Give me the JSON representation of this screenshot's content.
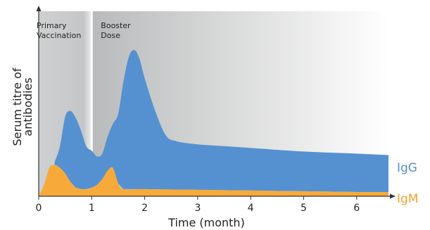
{
  "chart_data": {
    "type": "area",
    "xlabel": "Time (month)",
    "ylabel_lines": [
      "Serum titre of",
      "antibodies"
    ],
    "x_ticks": [
      0,
      1,
      2,
      3,
      4,
      5,
      6
    ],
    "x_tick_labels": [
      "0",
      "1",
      "2",
      "3",
      "4",
      "5",
      "6"
    ],
    "xlim": [
      0,
      6.6
    ],
    "ylim": [
      0,
      1
    ],
    "y_tick_labels": [],
    "phases": [
      {
        "label_lines": [
          "Primary",
          "Vaccination"
        ],
        "x_start": 0,
        "x_end": 1
      },
      {
        "label_lines": [
          "Booster",
          "Dose"
        ],
        "x_start": 1,
        "x_end": 6.6
      }
    ],
    "series": [
      {
        "name": "IgG",
        "color": "#5591D1",
        "label_color": "#5591D1",
        "stacked": true,
        "points": [
          [
            0.3,
            0.02
          ],
          [
            0.4,
            0.15
          ],
          [
            0.5,
            0.4
          ],
          [
            0.6,
            0.5
          ],
          [
            0.7,
            0.49
          ],
          [
            0.8,
            0.41
          ],
          [
            0.9,
            0.3
          ],
          [
            1.0,
            0.26
          ],
          [
            1.1,
            0.2
          ],
          [
            1.2,
            0.18
          ],
          [
            1.3,
            0.24
          ],
          [
            1.4,
            0.31
          ],
          [
            1.5,
            0.49
          ],
          [
            1.6,
            0.76
          ],
          [
            1.7,
            0.93
          ],
          [
            1.8,
            0.98
          ],
          [
            1.9,
            0.92
          ],
          [
            2.0,
            0.78
          ],
          [
            2.2,
            0.55
          ],
          [
            2.4,
            0.38
          ],
          [
            2.6,
            0.34
          ],
          [
            3.0,
            0.32
          ],
          [
            3.5,
            0.31
          ],
          [
            4.0,
            0.3
          ],
          [
            5.0,
            0.28
          ],
          [
            6.0,
            0.27
          ],
          [
            6.6,
            0.26
          ]
        ]
      },
      {
        "name": "IgM",
        "color": "#F7AA3A",
        "label_color": "#F4A12C",
        "stacked": false,
        "points": [
          [
            0.0,
            0.0
          ],
          [
            0.1,
            0.08
          ],
          [
            0.2,
            0.2
          ],
          [
            0.3,
            0.22
          ],
          [
            0.4,
            0.2
          ],
          [
            0.5,
            0.16
          ],
          [
            0.6,
            0.1
          ],
          [
            0.7,
            0.06
          ],
          [
            0.8,
            0.05
          ],
          [
            0.9,
            0.05
          ],
          [
            1.0,
            0.06
          ],
          [
            1.1,
            0.08
          ],
          [
            1.2,
            0.12
          ],
          [
            1.3,
            0.18
          ],
          [
            1.4,
            0.2
          ],
          [
            1.5,
            0.09
          ],
          [
            1.6,
            0.05
          ],
          [
            2.0,
            0.05
          ],
          [
            3.0,
            0.045
          ],
          [
            4.0,
            0.04
          ],
          [
            5.0,
            0.035
          ],
          [
            6.0,
            0.03
          ],
          [
            6.6,
            0.03
          ]
        ]
      }
    ]
  }
}
